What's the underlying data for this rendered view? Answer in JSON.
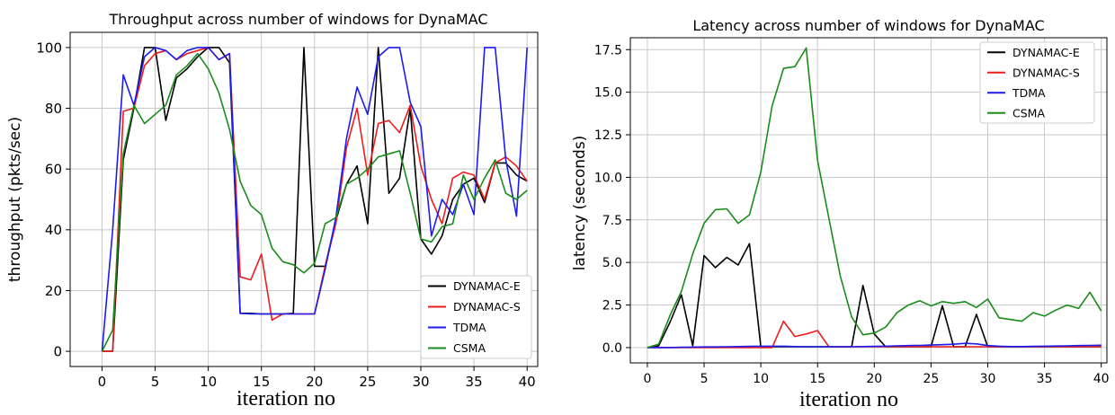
{
  "chart_data": [
    {
      "type": "line",
      "title": "Throughput across number of windows for DynaMAC",
      "xlabel": "iteration no",
      "ylabel": "throughput (pkts/sec)",
      "xlim": [
        -3,
        41
      ],
      "ylim": [
        -5,
        105
      ],
      "xticks": [
        0,
        5,
        10,
        15,
        20,
        25,
        30,
        35,
        40
      ],
      "yticks": [
        0,
        20,
        40,
        60,
        80,
        100
      ],
      "grid": true,
      "legend_position": "lower-right",
      "x": [
        0,
        1,
        2,
        3,
        4,
        5,
        6,
        7,
        8,
        9,
        10,
        11,
        12,
        13,
        14,
        15,
        16,
        17,
        18,
        19,
        20,
        21,
        22,
        23,
        24,
        25,
        26,
        27,
        28,
        29,
        30,
        31,
        32,
        33,
        34,
        35,
        36,
        37,
        38,
        39,
        40
      ],
      "series": [
        {
          "name": "DYNAMAC-E",
          "color": "#000000",
          "values": [
            0,
            0,
            63,
            80,
            100,
            100,
            76,
            90,
            93,
            97,
            100,
            100,
            95,
            12.5,
            12.5,
            12.3,
            12.3,
            12.3,
            12.5,
            100,
            28,
            28,
            43,
            55,
            61,
            42,
            100,
            52,
            57,
            80,
            37,
            32,
            38,
            50,
            55,
            57,
            49,
            62,
            62,
            58,
            56
          ]
        },
        {
          "name": "DYNAMAC-S",
          "color": "#ee1c1c",
          "values": [
            0,
            0,
            79,
            80,
            94,
            98,
            99,
            96,
            98,
            99,
            100,
            96,
            98,
            24.5,
            23.5,
            32,
            10.3,
            12.3,
            12.3,
            12.3,
            12.3,
            28,
            42,
            67,
            80,
            58,
            75,
            76,
            72,
            81,
            61,
            50,
            42,
            57,
            59,
            58,
            50,
            62,
            64,
            61,
            56
          ]
        },
        {
          "name": "TDMA",
          "color": "#1c1cee",
          "values": [
            0,
            40,
            91,
            81,
            97,
            100,
            99,
            96,
            99,
            100,
            100,
            96,
            98,
            12.5,
            12.3,
            12.3,
            12.3,
            12.3,
            12.3,
            12.3,
            12.3,
            27,
            44,
            70,
            87,
            78,
            97,
            100,
            100,
            82,
            74,
            38,
            50,
            45,
            55,
            45,
            100,
            100,
            63,
            44.5,
            100
          ]
        },
        {
          "name": "CSMA",
          "color": "#1a8c1a",
          "values": [
            0,
            7,
            65,
            81,
            75,
            78,
            81,
            91,
            94,
            98,
            93,
            85,
            73,
            56,
            48,
            45,
            34,
            29.5,
            28.5,
            25.8,
            29,
            42,
            44,
            55,
            57,
            60,
            64,
            65,
            66,
            52,
            37,
            36,
            41,
            42,
            58,
            50,
            57,
            63,
            52,
            50,
            53
          ]
        }
      ]
    },
    {
      "type": "line",
      "title": "Latency across number of windows for DynaMAC",
      "xlabel": "iteration no",
      "ylabel": "latency (seconds)",
      "xlim": [
        -1.5,
        40.5
      ],
      "ylim": [
        -0.9,
        18.2
      ],
      "xticks": [
        0,
        5,
        10,
        15,
        20,
        25,
        30,
        35,
        40
      ],
      "yticks": [
        0.0,
        2.5,
        5.0,
        7.5,
        10.0,
        12.5,
        15.0,
        17.5
      ],
      "ytick_labels": [
        "0.0",
        "2.5",
        "5.0",
        "7.5",
        "10.0",
        "12.5",
        "15.0",
        "17.5"
      ],
      "grid": true,
      "legend_position": "upper-right",
      "x": [
        0,
        1,
        2,
        3,
        4,
        5,
        6,
        7,
        8,
        9,
        10,
        11,
        12,
        13,
        14,
        15,
        16,
        17,
        18,
        19,
        20,
        21,
        22,
        23,
        24,
        25,
        26,
        27,
        28,
        29,
        30,
        31,
        32,
        33,
        34,
        35,
        36,
        37,
        38,
        39,
        40
      ],
      "series": [
        {
          "name": "DYNAMAC-E",
          "color": "#000000",
          "values": [
            0,
            0.1,
            1.5,
            3.1,
            0.1,
            5.4,
            4.7,
            5.3,
            4.85,
            6.1,
            0.05,
            0.05,
            0.05,
            0.05,
            0.05,
            0.05,
            0.05,
            0.05,
            0.05,
            3.65,
            0.8,
            0.05,
            0.05,
            0.05,
            0.05,
            0.05,
            2.45,
            0.05,
            0.05,
            1.95,
            0.05,
            0.05,
            0.05,
            0.05,
            0.05,
            0.05,
            0.05,
            0.05,
            0.05,
            0.05,
            0.05
          ]
        },
        {
          "name": "DYNAMAC-S",
          "color": "#ee1c1c",
          "values": [
            0,
            0,
            0,
            0,
            0,
            0,
            0,
            0,
            0,
            0,
            0,
            0,
            1.55,
            0.65,
            0.8,
            1.0,
            0.05,
            0.05,
            0.05,
            0.05,
            0.05,
            0.05,
            0.05,
            0.05,
            0.05,
            0.05,
            0.05,
            0.05,
            0.05,
            0.05,
            0.05,
            0.05,
            0.05,
            0.05,
            0.05,
            0.05,
            0.05,
            0.05,
            0.05,
            0.05,
            0.05
          ]
        },
        {
          "name": "TDMA",
          "color": "#1c1cee",
          "values": [
            0,
            0,
            0,
            0.02,
            0.03,
            0.04,
            0.04,
            0.05,
            0.06,
            0.07,
            0.08,
            0.08,
            0.08,
            0.06,
            0.05,
            0.05,
            0.05,
            0.05,
            0.05,
            0.06,
            0.07,
            0.08,
            0.1,
            0.12,
            0.13,
            0.15,
            0.17,
            0.2,
            0.25,
            0.22,
            0.12,
            0.08,
            0.06,
            0.06,
            0.07,
            0.08,
            0.09,
            0.1,
            0.12,
            0.13,
            0.14
          ]
        },
        {
          "name": "CSMA",
          "color": "#1a8c1a",
          "values": [
            0,
            0.2,
            1.9,
            3.3,
            5.5,
            7.3,
            8.1,
            8.15,
            7.3,
            7.8,
            10.3,
            14.2,
            16.4,
            16.5,
            17.6,
            11.0,
            7.6,
            4.2,
            1.8,
            0.75,
            0.85,
            1.2,
            2.05,
            2.5,
            2.75,
            2.45,
            2.7,
            2.6,
            2.7,
            2.35,
            2.85,
            1.75,
            1.65,
            1.55,
            2.05,
            1.85,
            2.2,
            2.5,
            2.3,
            3.25,
            2.15
          ]
        }
      ]
    }
  ]
}
